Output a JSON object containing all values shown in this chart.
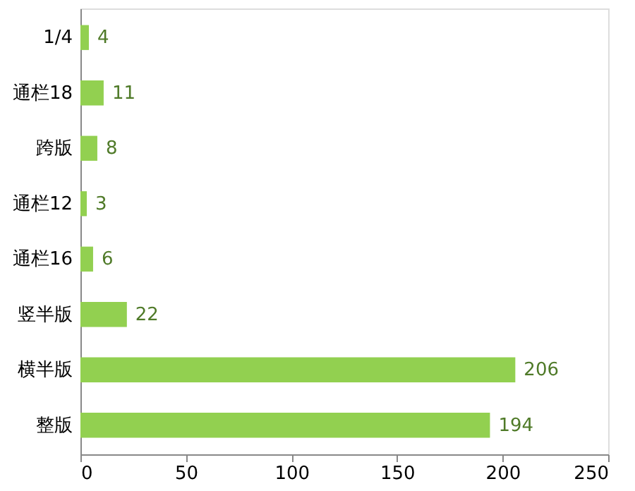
{
  "chart_data": {
    "type": "bar",
    "orientation": "horizontal",
    "categories": [
      "1/4",
      "通栏18",
      "跨版",
      "通栏12",
      "通栏16",
      "竖半版",
      "横半版",
      "整版"
    ],
    "values": [
      4,
      11,
      8,
      3,
      6,
      22,
      206,
      194
    ],
    "color": "#92d050",
    "xlim": [
      0,
      250
    ],
    "xticks": [
      0,
      50,
      100,
      150,
      200,
      250
    ],
    "grid": false,
    "data_labels": true
  }
}
